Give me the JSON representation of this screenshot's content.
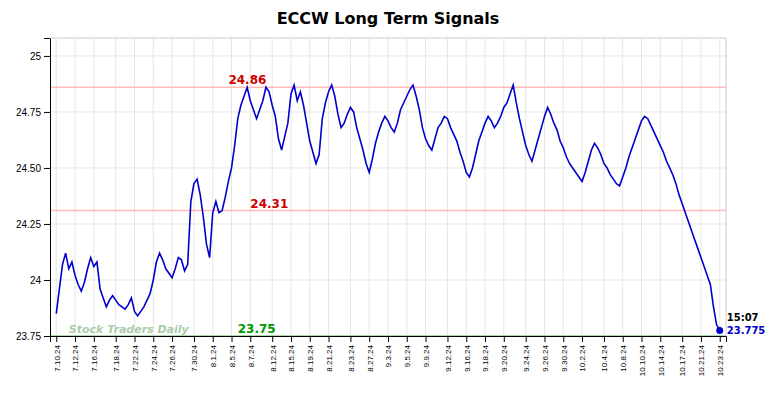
{
  "chart_data": {
    "type": "line",
    "title": "ECCW Long Term Signals",
    "color": "#0000cc",
    "grid": true,
    "ylim": [
      23.75,
      25.08
    ],
    "yticks": [
      23.75,
      24,
      24.25,
      {
        "value": 24.5,
        "label": "24.50"
      },
      24.75,
      25
    ],
    "reference_lines": [
      {
        "value": 24.86,
        "color": "#ffbbbb"
      },
      {
        "value": 24.31,
        "color": "#ffbbbb"
      },
      {
        "value": 23.75,
        "color": "#99cc99"
      }
    ],
    "annotations": [
      {
        "text": "24.86",
        "y": 24.86,
        "color": "#cc0000"
      },
      {
        "text": "24.31",
        "y": 24.31,
        "color": "#cc0000"
      },
      {
        "text": "23.75",
        "y": 23.75,
        "color": "#009900"
      }
    ],
    "watermark": {
      "text": "Stock Traders Daily",
      "color": "#aaccaa"
    },
    "last_point": {
      "marker": "circle",
      "color": "#0000cc",
      "time_label": "15:07",
      "value_label": "23.775"
    },
    "categories": [
      "7.10.24",
      null,
      null,
      null,
      null,
      null,
      "7.12.24",
      null,
      null,
      null,
      null,
      null,
      "7.16.24",
      null,
      null,
      null,
      null,
      null,
      null,
      "7.18.24",
      null,
      null,
      null,
      null,
      null,
      "7.22.24",
      null,
      null,
      null,
      null,
      null,
      "7.24.24",
      null,
      null,
      null,
      null,
      null,
      "7.26.24",
      null,
      null,
      null,
      null,
      null,
      null,
      "7.30.24",
      null,
      null,
      null,
      null,
      null,
      "8.1.24",
      null,
      null,
      null,
      null,
      null,
      "8.5.24",
      null,
      null,
      null,
      null,
      null,
      "8.7.24",
      null,
      null,
      null,
      null,
      null,
      null,
      "8.12.24",
      null,
      null,
      null,
      null,
      null,
      "8.15.24",
      null,
      null,
      null,
      null,
      null,
      "8.19.24",
      null,
      null,
      null,
      null,
      null,
      "8.21.24",
      null,
      null,
      null,
      null,
      null,
      null,
      "8.23.24",
      null,
      null,
      null,
      null,
      null,
      "8.27.24",
      null,
      null,
      null,
      null,
      null,
      "9.3.24",
      null,
      null,
      null,
      null,
      null,
      "9.5.24",
      null,
      null,
      null,
      null,
      null,
      "9.9.24",
      null,
      null,
      null,
      null,
      null,
      null,
      "9.12.24",
      null,
      null,
      null,
      null,
      null,
      "9.16.24",
      null,
      null,
      null,
      null,
      null,
      "9.18.24",
      null,
      null,
      null,
      null,
      null,
      "9.20.24",
      null,
      null,
      null,
      null,
      null,
      null,
      "9.24.24",
      null,
      null,
      null,
      null,
      null,
      "9.26.24",
      null,
      null,
      null,
      null,
      null,
      "9.30.24",
      null,
      null,
      null,
      null,
      null,
      "10.2.24",
      null,
      null,
      null,
      null,
      null,
      null,
      "10.4.24",
      null,
      null,
      null,
      null,
      null,
      "10.8.24",
      null,
      null,
      null,
      null,
      null,
      "10.10.24",
      null,
      null,
      null,
      null,
      null,
      "10.14.24",
      null,
      null,
      null,
      null,
      null,
      null,
      "10.17.24",
      null,
      null,
      null,
      null,
      null,
      "10.21.24",
      null,
      null,
      null,
      null,
      null,
      "10.23.24"
    ],
    "values": [
      23.85,
      23.96,
      24.07,
      24.12,
      24.05,
      24.08,
      24.02,
      23.98,
      23.95,
      23.99,
      24.05,
      24.1,
      24.06,
      24.08,
      23.96,
      23.92,
      23.88,
      23.91,
      23.93,
      23.91,
      23.89,
      23.88,
      23.87,
      23.89,
      23.92,
      23.86,
      23.84,
      23.86,
      23.88,
      23.91,
      23.94,
      24.0,
      24.08,
      24.12,
      24.09,
      24.05,
      24.03,
      24.01,
      24.05,
      24.1,
      24.09,
      24.04,
      24.07,
      24.35,
      24.43,
      24.45,
      24.38,
      24.28,
      24.16,
      24.1,
      24.3,
      24.35,
      24.3,
      24.31,
      24.37,
      24.44,
      24.5,
      24.6,
      24.72,
      24.78,
      24.82,
      24.86,
      24.8,
      24.76,
      24.72,
      24.76,
      24.8,
      24.86,
      24.84,
      24.78,
      24.73,
      24.63,
      24.58,
      24.64,
      24.7,
      24.83,
      24.87,
      24.8,
      24.84,
      24.78,
      24.7,
      24.62,
      24.57,
      24.52,
      24.56,
      24.72,
      24.79,
      24.84,
      24.87,
      24.82,
      24.74,
      24.68,
      24.7,
      24.74,
      24.77,
      24.75,
      24.68,
      24.63,
      24.58,
      24.52,
      24.48,
      24.54,
      24.61,
      24.66,
      24.7,
      24.73,
      24.71,
      24.68,
      24.66,
      24.7,
      24.76,
      24.79,
      24.82,
      24.85,
      24.87,
      24.82,
      24.76,
      24.68,
      24.63,
      24.6,
      24.58,
      24.63,
      24.68,
      24.7,
      24.73,
      24.72,
      24.68,
      24.65,
      24.62,
      24.57,
      24.53,
      24.48,
      24.46,
      24.5,
      24.56,
      24.62,
      24.66,
      24.7,
      24.73,
      24.71,
      24.68,
      24.7,
      24.73,
      24.77,
      24.79,
      24.83,
      24.87,
      24.79,
      24.72,
      24.66,
      24.6,
      24.56,
      24.53,
      24.58,
      24.63,
      24.68,
      24.73,
      24.77,
      24.74,
      24.7,
      24.67,
      24.62,
      24.59,
      24.55,
      24.52,
      24.5,
      24.48,
      24.46,
      24.44,
      24.48,
      24.53,
      24.58,
      24.61,
      24.59,
      24.56,
      24.52,
      24.5,
      24.47,
      24.45,
      24.43,
      24.42,
      24.46,
      24.5,
      24.55,
      24.59,
      24.63,
      24.67,
      24.71,
      24.73,
      24.72,
      24.69,
      24.66,
      24.63,
      24.6,
      24.57,
      24.53,
      24.5,
      24.47,
      24.43,
      24.38,
      24.34,
      24.3,
      24.26,
      24.22,
      24.18,
      24.14,
      24.1,
      24.06,
      24.02,
      23.98,
      23.88,
      23.8,
      23.775
    ]
  }
}
